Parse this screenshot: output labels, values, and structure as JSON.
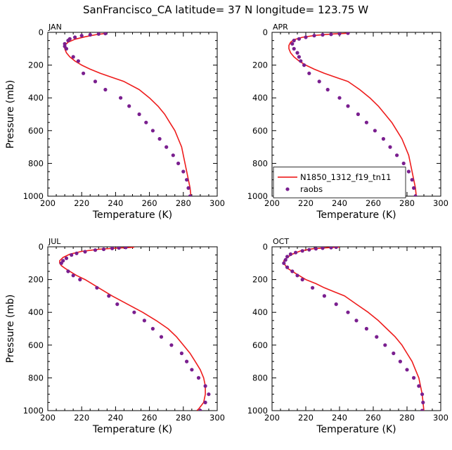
{
  "figure": {
    "title": "SanFrancisco_CA  latitude= 37 N longitude= 123.75 W"
  },
  "colors": {
    "model": "#ee1c1c",
    "obs": "#7a1f8f"
  },
  "legend": {
    "model_label": "N1850_1312_f19_tn11",
    "obs_label": "raobs"
  },
  "chart_data": [
    {
      "type": "line",
      "panel": "JAN",
      "xlabel": "Temperature (K)",
      "ylabel": "Pressure (mb)",
      "xlim": [
        200,
        300
      ],
      "ylim": [
        1000,
        0
      ],
      "xticks": [
        200,
        220,
        240,
        260,
        280,
        300
      ],
      "yticks": [
        0,
        200,
        400,
        600,
        800,
        1000
      ],
      "series": [
        {
          "name": "N1850_1312_f19_tn11",
          "kind": "line",
          "points": [
            [
              234,
              7
            ],
            [
              228,
              15
            ],
            [
              222,
              27
            ],
            [
              216,
              42
            ],
            [
              212,
              60
            ],
            [
              210,
              80
            ],
            [
              210,
              100
            ],
            [
              211,
              125
            ],
            [
              213,
              150
            ],
            [
              216,
              175
            ],
            [
              220,
              200
            ],
            [
              225,
              225
            ],
            [
              231,
              250
            ],
            [
              238,
              275
            ],
            [
              245,
              300
            ],
            [
              254,
              350
            ],
            [
              260,
              400
            ],
            [
              265,
              450
            ],
            [
              269,
              500
            ],
            [
              272,
              550
            ],
            [
              275,
              600
            ],
            [
              277,
              650
            ],
            [
              279,
              700
            ],
            [
              280,
              750
            ],
            [
              281,
              800
            ],
            [
              282,
              850
            ],
            [
              283,
              900
            ],
            [
              284,
              950
            ],
            [
              284.5,
              1000
            ]
          ]
        },
        {
          "name": "raobs",
          "kind": "scatter",
          "points": [
            [
              234,
              7
            ],
            [
              230,
              10
            ],
            [
              225,
              15
            ],
            [
              220,
              20
            ],
            [
              216,
              30
            ],
            [
              213,
              40
            ],
            [
              212,
              50
            ],
            [
              210,
              70
            ],
            [
              210,
              85
            ],
            [
              211,
              100
            ],
            [
              215,
              150
            ],
            [
              218,
              175
            ],
            [
              221,
              250
            ],
            [
              228,
              300
            ],
            [
              234,
              350
            ],
            [
              243,
              400
            ],
            [
              248,
              450
            ],
            [
              254,
              500
            ],
            [
              258,
              550
            ],
            [
              262,
              600
            ],
            [
              266,
              650
            ],
            [
              270,
              700
            ],
            [
              274,
              750
            ],
            [
              277,
              800
            ],
            [
              280,
              850
            ],
            [
              282,
              900
            ],
            [
              283,
              950
            ],
            [
              284,
              1000
            ]
          ]
        }
      ]
    },
    {
      "type": "line",
      "panel": "APR",
      "xlabel": "Temperature (K)",
      "ylabel": "",
      "xlim": [
        200,
        300
      ],
      "ylim": [
        1000,
        0
      ],
      "xticks": [
        200,
        220,
        240,
        260,
        280,
        300
      ],
      "yticks": [
        0,
        200,
        400,
        600,
        800,
        1000
      ],
      "show_legend": true,
      "legend_position": "lower-left",
      "series": [
        {
          "name": "N1850_1312_f19_tn11",
          "kind": "line",
          "points": [
            [
              246,
              5
            ],
            [
              236,
              10
            ],
            [
              226,
              18
            ],
            [
              218,
              30
            ],
            [
              213,
              45
            ],
            [
              211,
              60
            ],
            [
              210,
              80
            ],
            [
              210,
              100
            ],
            [
              211,
              125
            ],
            [
              213,
              150
            ],
            [
              216,
              175
            ],
            [
              220,
              200
            ],
            [
              225,
              225
            ],
            [
              231,
              250
            ],
            [
              238,
              275
            ],
            [
              245,
              300
            ],
            [
              252,
              350
            ],
            [
              258,
              400
            ],
            [
              263,
              450
            ],
            [
              267,
              500
            ],
            [
              271,
              550
            ],
            [
              274,
              600
            ],
            [
              277,
              650
            ],
            [
              279,
              700
            ],
            [
              281,
              750
            ],
            [
              282,
              800
            ],
            [
              283,
              850
            ],
            [
              284,
              900
            ],
            [
              285,
              950
            ],
            [
              285.5,
              1000
            ]
          ]
        },
        {
          "name": "raobs",
          "kind": "scatter",
          "points": [
            [
              245,
              5
            ],
            [
              240,
              8
            ],
            [
              235,
              12
            ],
            [
              230,
              15
            ],
            [
              225,
              20
            ],
            [
              220,
              30
            ],
            [
              216,
              40
            ],
            [
              213,
              50
            ],
            [
              212,
              70
            ],
            [
              213,
              100
            ],
            [
              215,
              125
            ],
            [
              216,
              150
            ],
            [
              217,
              175
            ],
            [
              219,
              200
            ],
            [
              222,
              250
            ],
            [
              228,
              300
            ],
            [
              233,
              350
            ],
            [
              240,
              400
            ],
            [
              245,
              450
            ],
            [
              251,
              500
            ],
            [
              256,
              550
            ],
            [
              261,
              600
            ],
            [
              266,
              650
            ],
            [
              270,
              700
            ],
            [
              274,
              750
            ],
            [
              278,
              800
            ],
            [
              281,
              850
            ],
            [
              283,
              900
            ],
            [
              284,
              950
            ],
            [
              285,
              1000
            ]
          ]
        }
      ]
    },
    {
      "type": "line",
      "panel": "JUL",
      "xlabel": "Temperature (K)",
      "ylabel": "Pressure (mb)",
      "xlim": [
        200,
        300
      ],
      "ylim": [
        1000,
        0
      ],
      "xticks": [
        200,
        220,
        240,
        260,
        280,
        300
      ],
      "yticks": [
        0,
        200,
        400,
        600,
        800,
        1000
      ],
      "series": [
        {
          "name": "N1850_1312_f19_tn11",
          "kind": "line",
          "points": [
            [
              251,
              3
            ],
            [
              240,
              8
            ],
            [
              230,
              15
            ],
            [
              220,
              28
            ],
            [
              213,
              45
            ],
            [
              209,
              65
            ],
            [
              207,
              85
            ],
            [
              207,
              100
            ],
            [
              208,
              115
            ],
            [
              210,
              130
            ],
            [
              213,
              150
            ],
            [
              217,
              175
            ],
            [
              222,
              200
            ],
            [
              230,
              250
            ],
            [
              238,
              300
            ],
            [
              247,
              350
            ],
            [
              256,
              400
            ],
            [
              264,
              450
            ],
            [
              271,
              500
            ],
            [
              276,
              550
            ],
            [
              280,
              600
            ],
            [
              284,
              650
            ],
            [
              287,
              700
            ],
            [
              290,
              750
            ],
            [
              292,
              800
            ],
            [
              293,
              850
            ],
            [
              293,
              900
            ],
            [
              292,
              950
            ],
            [
              289,
              990
            ],
            [
              288,
              1000
            ]
          ]
        },
        {
          "name": "raobs",
          "kind": "scatter",
          "points": [
            [
              246,
              4
            ],
            [
              242,
              7
            ],
            [
              238,
              10
            ],
            [
              233,
              15
            ],
            [
              228,
              20
            ],
            [
              222,
              30
            ],
            [
              217,
              40
            ],
            [
              214,
              50
            ],
            [
              211,
              70
            ],
            [
              209,
              85
            ],
            [
              208,
              100
            ],
            [
              212,
              150
            ],
            [
              215,
              175
            ],
            [
              219,
              200
            ],
            [
              229,
              250
            ],
            [
              236,
              300
            ],
            [
              241,
              350
            ],
            [
              251,
              400
            ],
            [
              257,
              450
            ],
            [
              262,
              500
            ],
            [
              267,
              550
            ],
            [
              273,
              600
            ],
            [
              279,
              650
            ],
            [
              282,
              700
            ],
            [
              285,
              750
            ],
            [
              289,
              800
            ],
            [
              293,
              850
            ],
            [
              295,
              900
            ],
            [
              293,
              950
            ],
            [
              290,
              1000
            ]
          ]
        }
      ]
    },
    {
      "type": "line",
      "panel": "OCT",
      "xlabel": "Temperature (K)",
      "ylabel": "",
      "xlim": [
        200,
        300
      ],
      "ylim": [
        1000,
        0
      ],
      "xticks": [
        200,
        220,
        240,
        260,
        280,
        300
      ],
      "yticks": [
        0,
        200,
        400,
        600,
        800,
        1000
      ],
      "series": [
        {
          "name": "N1850_1312_f19_tn11",
          "kind": "line",
          "points": [
            [
              240,
              2
            ],
            [
              232,
              6
            ],
            [
              224,
              12
            ],
            [
              217,
              25
            ],
            [
              212,
              45
            ],
            [
              209,
              65
            ],
            [
              207,
              85
            ],
            [
              207,
              100
            ],
            [
              208,
              115
            ],
            [
              209,
              130
            ],
            [
              212,
              150
            ],
            [
              216,
              175
            ],
            [
              220,
              200
            ],
            [
              226,
              225
            ],
            [
              231,
              250
            ],
            [
              237,
              275
            ],
            [
              243,
              300
            ],
            [
              250,
              350
            ],
            [
              257,
              400
            ],
            [
              263,
              450
            ],
            [
              268,
              500
            ],
            [
              273,
              550
            ],
            [
              277,
              600
            ],
            [
              280,
              650
            ],
            [
              283,
              700
            ],
            [
              285,
              750
            ],
            [
              287,
              800
            ],
            [
              288,
              850
            ],
            [
              289,
              900
            ],
            [
              289.5,
              950
            ],
            [
              290,
              1000
            ]
          ]
        },
        {
          "name": "raobs",
          "kind": "scatter",
          "points": [
            [
              238,
              2
            ],
            [
              235,
              5
            ],
            [
              230,
              8
            ],
            [
              226,
              12
            ],
            [
              222,
              18
            ],
            [
              218,
              25
            ],
            [
              214,
              35
            ],
            [
              211,
              45
            ],
            [
              209,
              60
            ],
            [
              208,
              80
            ],
            [
              207,
              100
            ],
            [
              209,
              125
            ],
            [
              212,
              150
            ],
            [
              215,
              175
            ],
            [
              218,
              200
            ],
            [
              224,
              250
            ],
            [
              231,
              300
            ],
            [
              238,
              350
            ],
            [
              245,
              400
            ],
            [
              250,
              450
            ],
            [
              256,
              500
            ],
            [
              262,
              550
            ],
            [
              267,
              600
            ],
            [
              272,
              650
            ],
            [
              276,
              700
            ],
            [
              280,
              750
            ],
            [
              284,
              800
            ],
            [
              287,
              850
            ],
            [
              289,
              900
            ],
            [
              289.5,
              950
            ],
            [
              289,
              1000
            ]
          ]
        }
      ]
    }
  ]
}
